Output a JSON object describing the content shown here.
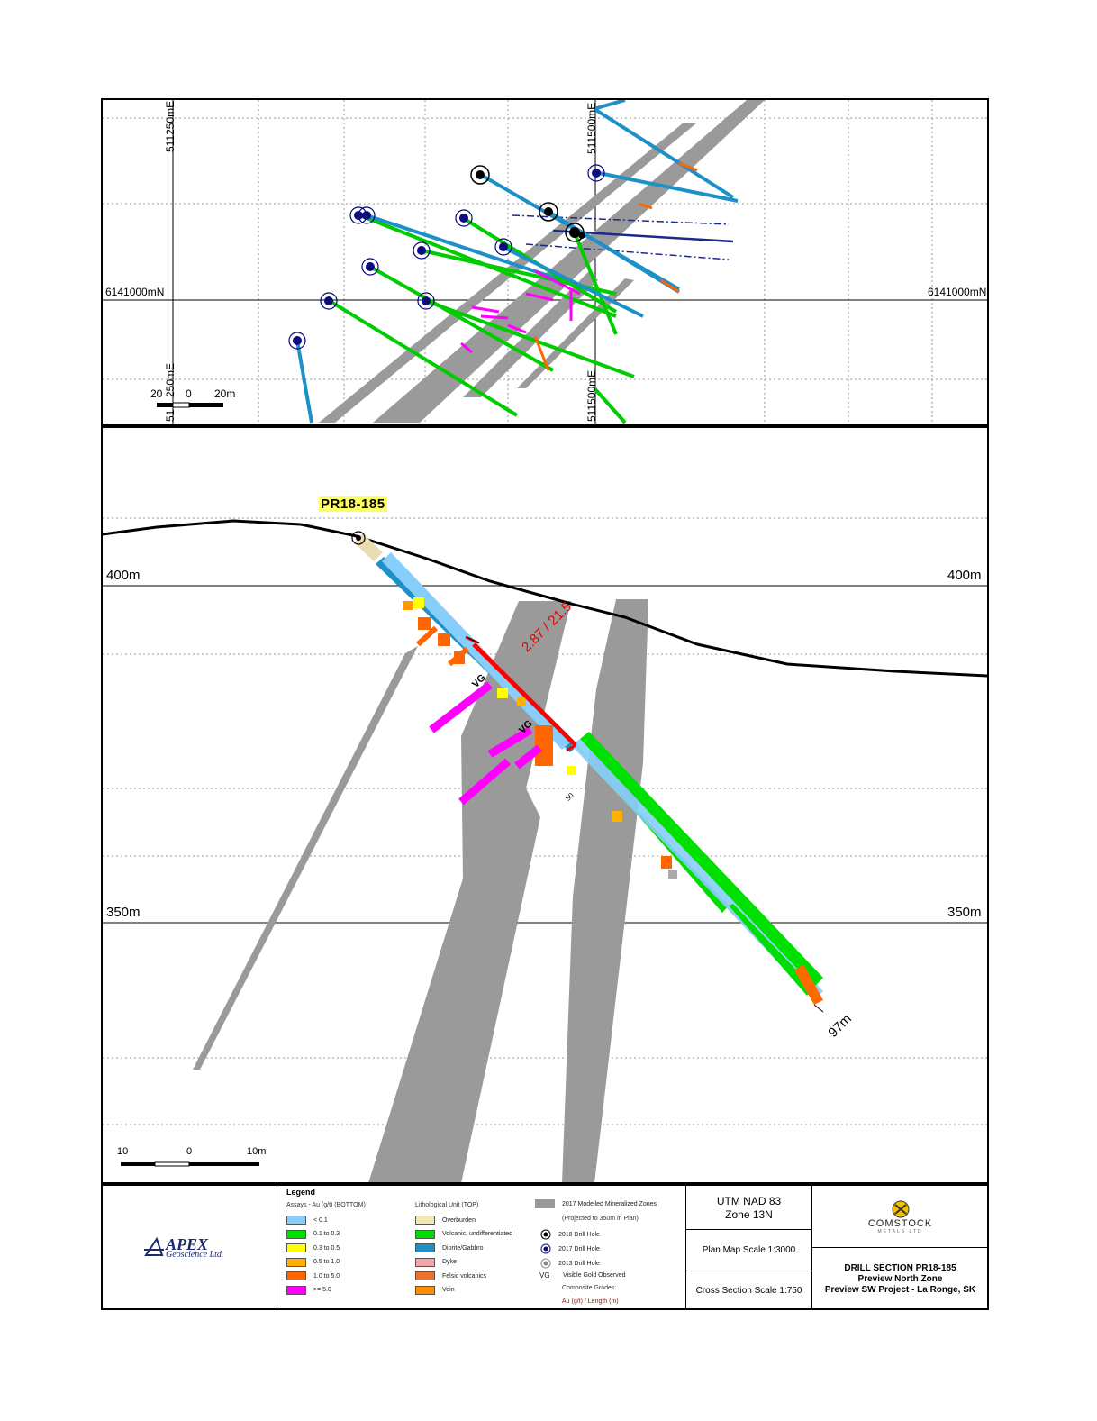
{
  "plan_map": {
    "easting_labels": [
      "511250mE",
      "511500mE"
    ],
    "easting_labels_bottom": [
      "51",
      "250mE",
      "511500mE"
    ],
    "northing_label_left": "6141000mN",
    "northing_label_right": "6141000mN",
    "scale_labels": [
      "20",
      "0",
      "20m"
    ]
  },
  "section": {
    "hole_id": "PR18-185",
    "elevation_labels_left": [
      "400m",
      "350m"
    ],
    "elevation_labels_right": [
      "400m",
      "350m"
    ],
    "composite_label": "2.87 / 21.5",
    "vg_label": "VG",
    "vg_label_2": "VG",
    "depth_label": "97m",
    "tick_label": "50",
    "scale_labels": [
      "10",
      "0",
      "10m"
    ]
  },
  "legend": {
    "title": "Legend",
    "assays_header": "Assays - Au (g/t) (BOTTOM)",
    "assays": [
      {
        "label": "< 0.1",
        "color": "#87cefa"
      },
      {
        "label": "0.1 to 0.3",
        "color": "#00e000"
      },
      {
        "label": "0.3 to 0.5",
        "color": "#ffff00"
      },
      {
        "label": "0.5 to 1.0",
        "color": "#ffb000"
      },
      {
        "label": "1.0 to 5.0",
        "color": "#ff6600"
      },
      {
        "label": ">= 5.0",
        "color": "#ff00ff"
      }
    ],
    "litho_header": "Lithological Unit (TOP)",
    "litho": [
      {
        "label": "Overburden",
        "color": "#f3e7b0"
      },
      {
        "label": "Volcanic, undifferentiated",
        "color": "#00dd00"
      },
      {
        "label": "Diorite/Gabbro",
        "color": "#1e90c8"
      },
      {
        "label": "Dyke",
        "color": "#f4a6a6"
      },
      {
        "label": "Felsic volcanics",
        "color": "#f07030"
      },
      {
        "label": "Vein",
        "color": "#ff8c00"
      }
    ],
    "zones_label": "2017 Modelled Mineralized Zones",
    "zones_sub": "(Projected to 350m in Plan)",
    "zones_color": "#999999",
    "holes": [
      {
        "label": "2018 Drill Hole",
        "icon": "black-circle-icon"
      },
      {
        "label": "2017 Drill Hole",
        "icon": "navy-circle-icon"
      },
      {
        "label": "2013 Drill Hole",
        "icon": "gray-circle-icon"
      }
    ],
    "vg_symbol": "VG",
    "vg_label": "Visible Gold Observed",
    "composite_header": "Composite Grades:",
    "composite_example": "Au (g/t) / Length (m)"
  },
  "title_block": {
    "company_logo": "APEX",
    "company_sub": "Geoscience Ltd.",
    "client_logo": "COMSTOCK",
    "client_sub": "METALS LTD",
    "utm": "UTM NAD 83",
    "zone": "Zone 13N",
    "plan_scale": "Plan Map Scale 1:3000",
    "section_scale": "Cross Section Scale 1:750",
    "drill_section": "DRILL SECTION PR18-185",
    "zone_name": "Preview North Zone",
    "project": "Preview SW Project - La Ronge, SK"
  }
}
